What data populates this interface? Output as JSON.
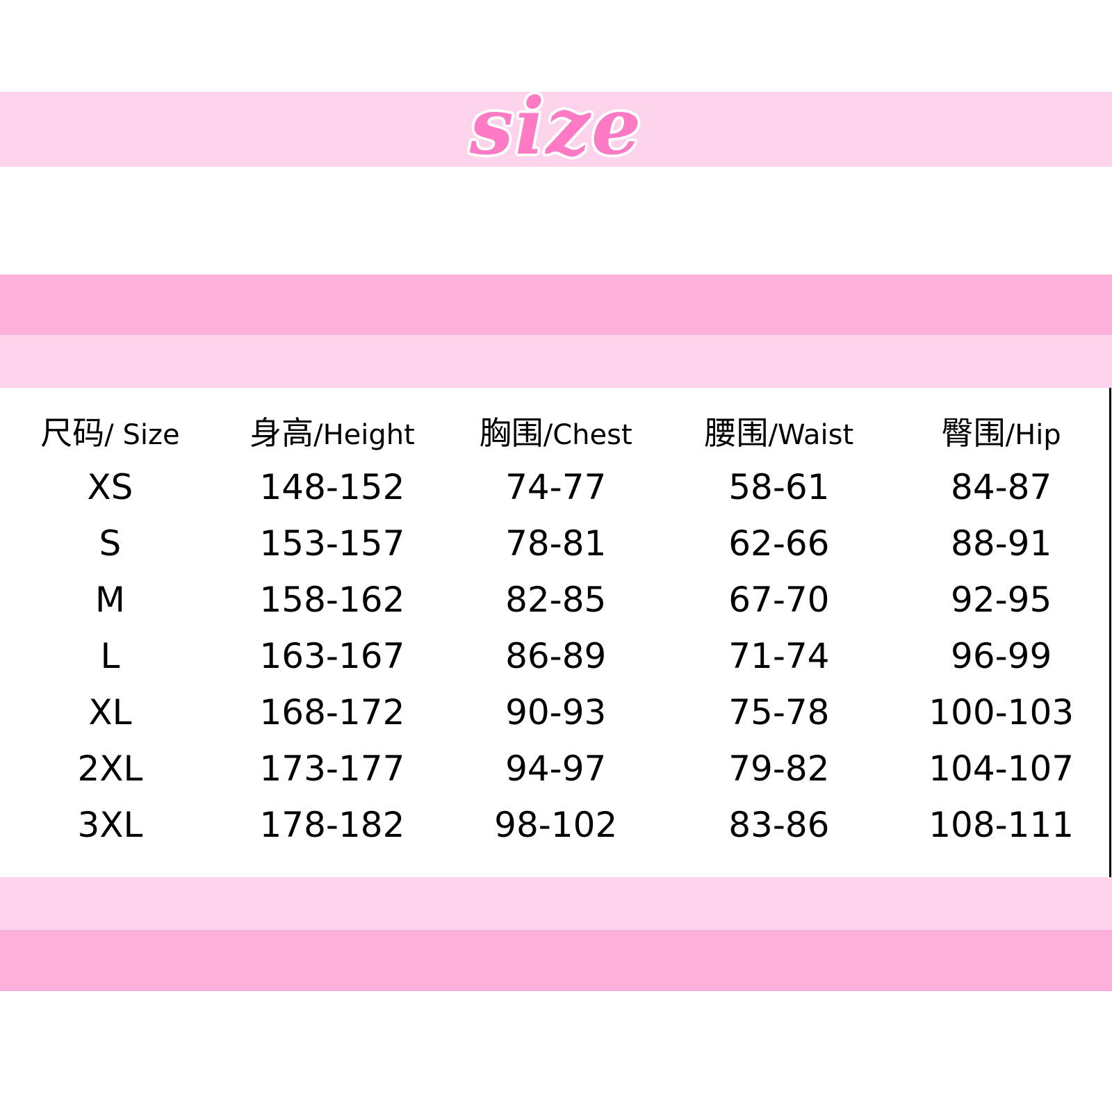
{
  "title": "size",
  "colors": {
    "light_band": "#fed3ec",
    "mid_band": "#fdb0da",
    "title": "#ff7ac5"
  },
  "headers": [
    {
      "cn": "尺码",
      "en": "/ Size"
    },
    {
      "cn": "身高",
      "en": "/Height"
    },
    {
      "cn": "胸围",
      "en": "/Chest"
    },
    {
      "cn": "腰围",
      "en": "/Waist"
    },
    {
      "cn": "臀围",
      "en": "/Hip"
    }
  ],
  "rows": [
    [
      "XS",
      "148-152",
      "74-77",
      "58-61",
      "84-87"
    ],
    [
      "S",
      "153-157",
      "78-81",
      "62-66",
      "88-91"
    ],
    [
      "M",
      "158-162",
      "82-85",
      "67-70",
      "92-95"
    ],
    [
      "L",
      "163-167",
      "86-89",
      "71-74",
      "96-99"
    ],
    [
      "XL",
      "168-172",
      "90-93",
      "75-78",
      "100-103"
    ],
    [
      "2XL",
      "173-177",
      "94-97",
      "79-82",
      "104-107"
    ],
    [
      "3XL",
      "178-182",
      "98-102",
      "83-86",
      "108-111"
    ]
  ]
}
